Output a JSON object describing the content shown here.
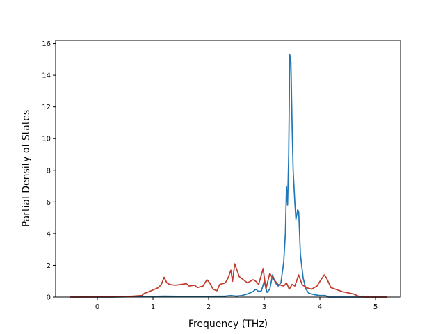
{
  "chart_data": {
    "type": "line",
    "title": "",
    "xlabel": "Frequency (THz)",
    "ylabel": "Partial Density of States",
    "xlim": [
      -0.75,
      5.45
    ],
    "ylim": [
      0,
      16.2
    ],
    "x_ticks": [
      "0",
      "1",
      "2",
      "3",
      "4",
      "5"
    ],
    "y_ticks": [
      "0",
      "2",
      "4",
      "6",
      "8",
      "10",
      "12",
      "14",
      "16"
    ],
    "grid": false,
    "legend": "none",
    "series": [
      {
        "color": "#1f77b4",
        "points": [
          [
            -0.5,
            0
          ],
          [
            0.3,
            0
          ],
          [
            0.8,
            0.03
          ],
          [
            1.2,
            0.06
          ],
          [
            1.6,
            0.04
          ],
          [
            2.0,
            0.05
          ],
          [
            2.3,
            0.06
          ],
          [
            2.4,
            0.1
          ],
          [
            2.5,
            0.06
          ],
          [
            2.6,
            0.1
          ],
          [
            2.7,
            0.2
          ],
          [
            2.8,
            0.35
          ],
          [
            2.85,
            0.5
          ],
          [
            2.9,
            0.35
          ],
          [
            2.95,
            0.4
          ],
          [
            3.0,
            1.0
          ],
          [
            3.05,
            0.3
          ],
          [
            3.1,
            0.5
          ],
          [
            3.15,
            1.4
          ],
          [
            3.2,
            0.9
          ],
          [
            3.25,
            0.7
          ],
          [
            3.3,
            0.9
          ],
          [
            3.35,
            2.2
          ],
          [
            3.38,
            4.0
          ],
          [
            3.4,
            7.0
          ],
          [
            3.42,
            5.8
          ],
          [
            3.44,
            9.0
          ],
          [
            3.46,
            15.3
          ],
          [
            3.48,
            14.8
          ],
          [
            3.5,
            11.0
          ],
          [
            3.52,
            8.0
          ],
          [
            3.55,
            6.0
          ],
          [
            3.57,
            4.9
          ],
          [
            3.6,
            5.5
          ],
          [
            3.62,
            5.4
          ],
          [
            3.65,
            2.7
          ],
          [
            3.7,
            1.2
          ],
          [
            3.75,
            0.5
          ],
          [
            3.8,
            0.25
          ],
          [
            3.9,
            0.15
          ],
          [
            4.0,
            0.1
          ],
          [
            4.1,
            0.1
          ],
          [
            4.15,
            0
          ],
          [
            4.5,
            0
          ],
          [
            5.2,
            0
          ]
        ]
      },
      {
        "color": "#c0392b",
        "points": [
          [
            -0.5,
            0
          ],
          [
            0.3,
            0.01
          ],
          [
            0.6,
            0.05
          ],
          [
            0.8,
            0.1
          ],
          [
            0.85,
            0.25
          ],
          [
            0.9,
            0.3
          ],
          [
            1.0,
            0.45
          ],
          [
            1.1,
            0.6
          ],
          [
            1.15,
            0.8
          ],
          [
            1.2,
            1.25
          ],
          [
            1.25,
            0.9
          ],
          [
            1.3,
            0.8
          ],
          [
            1.4,
            0.75
          ],
          [
            1.5,
            0.8
          ],
          [
            1.6,
            0.85
          ],
          [
            1.65,
            0.7
          ],
          [
            1.75,
            0.75
          ],
          [
            1.8,
            0.6
          ],
          [
            1.9,
            0.7
          ],
          [
            1.97,
            1.1
          ],
          [
            2.02,
            0.9
          ],
          [
            2.08,
            0.5
          ],
          [
            2.15,
            0.4
          ],
          [
            2.2,
            0.8
          ],
          [
            2.3,
            0.9
          ],
          [
            2.35,
            1.2
          ],
          [
            2.4,
            1.7
          ],
          [
            2.43,
            1.0
          ],
          [
            2.47,
            2.1
          ],
          [
            2.55,
            1.3
          ],
          [
            2.7,
            0.9
          ],
          [
            2.8,
            1.1
          ],
          [
            2.85,
            1.0
          ],
          [
            2.9,
            0.8
          ],
          [
            2.98,
            1.8
          ],
          [
            3.03,
            0.5
          ],
          [
            3.1,
            1.5
          ],
          [
            3.15,
            1.2
          ],
          [
            3.25,
            0.8
          ],
          [
            3.35,
            0.7
          ],
          [
            3.4,
            0.9
          ],
          [
            3.45,
            0.5
          ],
          [
            3.5,
            0.8
          ],
          [
            3.55,
            0.7
          ],
          [
            3.62,
            1.4
          ],
          [
            3.68,
            0.8
          ],
          [
            3.75,
            0.6
          ],
          [
            3.85,
            0.5
          ],
          [
            3.95,
            0.7
          ],
          [
            4.02,
            1.1
          ],
          [
            4.08,
            1.4
          ],
          [
            4.12,
            1.2
          ],
          [
            4.2,
            0.6
          ],
          [
            4.4,
            0.35
          ],
          [
            4.6,
            0.2
          ],
          [
            4.7,
            0.05
          ],
          [
            4.8,
            0
          ],
          [
            5.2,
            0
          ]
        ]
      }
    ]
  }
}
